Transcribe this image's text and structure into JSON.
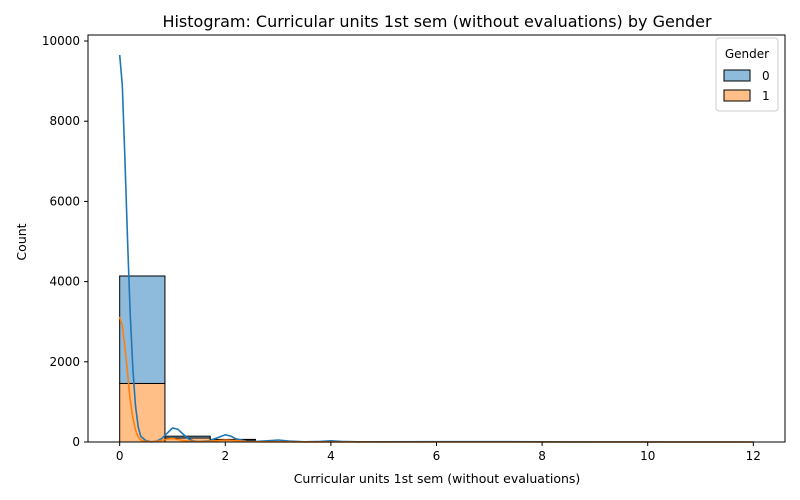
{
  "chart_data": {
    "type": "bar",
    "title": "Histogram: Curricular units 1st sem (without evaluations) by Gender",
    "xlabel": "Curricular units 1st sem (without evaluations)",
    "ylabel": "Count",
    "xlim": [
      -0.6,
      12.6
    ],
    "ylim": [
      0,
      10150
    ],
    "x_ticks": [
      0,
      2,
      4,
      6,
      8,
      10,
      12
    ],
    "y_ticks": [
      0,
      2000,
      4000,
      6000,
      8000,
      10000
    ],
    "stacked": true,
    "bin_width": 0.857,
    "bins": [
      {
        "x0": 0.0,
        "x1": 0.857,
        "values": [
          2680,
          1460
        ]
      },
      {
        "x0": 0.857,
        "x1": 1.714,
        "values": [
          45,
          100
        ]
      },
      {
        "x0": 1.714,
        "x1": 2.571,
        "values": [
          20,
          45
        ]
      },
      {
        "x0": 2.571,
        "x1": 3.429,
        "values": [
          8,
          5
        ]
      },
      {
        "x0": 3.429,
        "x1": 4.286,
        "values": [
          5,
          3
        ]
      }
    ],
    "series": [
      {
        "name": "0",
        "color": "#1f77b4",
        "fill": "#8ebbdc",
        "kde": [
          [
            0,
            9650
          ],
          [
            0.05,
            8900
          ],
          [
            0.1,
            7000
          ],
          [
            0.15,
            5000
          ],
          [
            0.2,
            3200
          ],
          [
            0.25,
            1800
          ],
          [
            0.3,
            900
          ],
          [
            0.35,
            380
          ],
          [
            0.4,
            140
          ],
          [
            0.5,
            30
          ],
          [
            0.6,
            5
          ],
          [
            0.7,
            20
          ],
          [
            0.8,
            90
          ],
          [
            0.9,
            220
          ],
          [
            1.0,
            350
          ],
          [
            1.1,
            320
          ],
          [
            1.2,
            200
          ],
          [
            1.3,
            80
          ],
          [
            1.4,
            25
          ],
          [
            1.5,
            10
          ],
          [
            1.7,
            30
          ],
          [
            1.9,
            130
          ],
          [
            2.0,
            180
          ],
          [
            2.1,
            150
          ],
          [
            2.2,
            80
          ],
          [
            2.4,
            20
          ],
          [
            2.6,
            15
          ],
          [
            2.8,
            30
          ],
          [
            3.0,
            50
          ],
          [
            3.2,
            25
          ],
          [
            3.5,
            5
          ],
          [
            3.8,
            15
          ],
          [
            4.0,
            30
          ],
          [
            4.2,
            15
          ],
          [
            4.5,
            5
          ],
          [
            5,
            5
          ],
          [
            6,
            8
          ],
          [
            7,
            8
          ],
          [
            8,
            5
          ],
          [
            9,
            3
          ],
          [
            10,
            2
          ],
          [
            12,
            0
          ]
        ]
      },
      {
        "name": "1",
        "color": "#ff7f0e",
        "fill": "#ffbf86",
        "kde": [
          [
            0,
            3120
          ],
          [
            0.05,
            2900
          ],
          [
            0.1,
            2350
          ],
          [
            0.15,
            1700
          ],
          [
            0.2,
            1050
          ],
          [
            0.25,
            600
          ],
          [
            0.3,
            300
          ],
          [
            0.35,
            130
          ],
          [
            0.4,
            50
          ],
          [
            0.5,
            10
          ],
          [
            0.6,
            5
          ],
          [
            0.7,
            15
          ],
          [
            0.8,
            40
          ],
          [
            0.9,
            75
          ],
          [
            1.0,
            85
          ],
          [
            1.1,
            65
          ],
          [
            1.2,
            35
          ],
          [
            1.4,
            10
          ],
          [
            1.6,
            10
          ],
          [
            1.8,
            30
          ],
          [
            2.0,
            50
          ],
          [
            2.2,
            35
          ],
          [
            2.4,
            10
          ],
          [
            2.7,
            5
          ],
          [
            3.0,
            5
          ],
          [
            3.5,
            2
          ],
          [
            4.0,
            2
          ],
          [
            5,
            0
          ],
          [
            12,
            0
          ]
        ]
      }
    ],
    "legend": {
      "title": "Gender",
      "position": "top-right"
    }
  }
}
